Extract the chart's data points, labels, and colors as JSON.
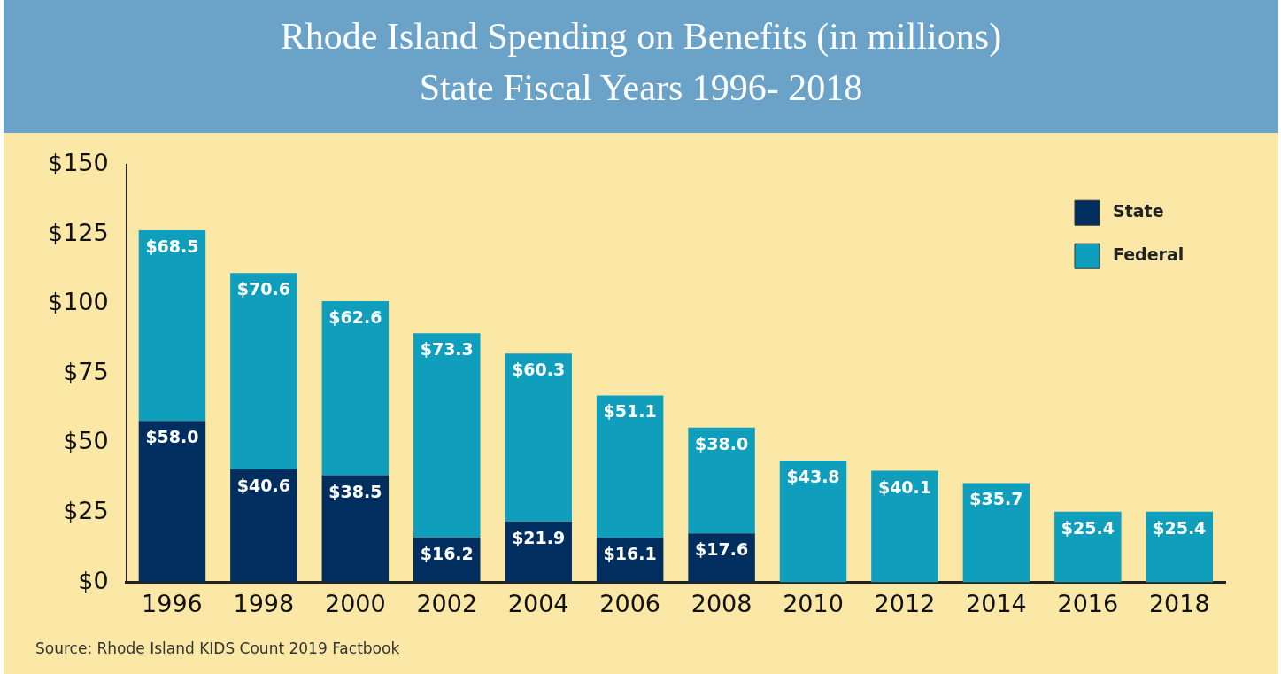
{
  "chart_data": {
    "type": "bar",
    "title": "Rhode Island Spending on Benefits (in millions)",
    "subtitle": "State Fiscal Years 1996- 2018",
    "categories": [
      "1996",
      "1998",
      "2000",
      "2002",
      "2004",
      "2006",
      "2008",
      "2010",
      "2012",
      "2014",
      "2016",
      "2018"
    ],
    "stacked": true,
    "series": [
      {
        "name": "State",
        "color": "#002f5f",
        "values": [
          58.0,
          40.6,
          38.5,
          16.2,
          21.9,
          16.1,
          17.6,
          null,
          null,
          null,
          null,
          null
        ],
        "value_labels": [
          "$58.0",
          "$40.6",
          "$38.5",
          "$16.2",
          "$21.9",
          "$16.1",
          "$17.6",
          null,
          null,
          null,
          null,
          null
        ]
      },
      {
        "name": "Federal",
        "color": "#109ebd",
        "values": [
          68.5,
          70.6,
          62.6,
          73.3,
          60.3,
          51.1,
          38.0,
          43.8,
          40.1,
          35.7,
          25.4,
          25.4
        ],
        "value_labels": [
          "$68.5",
          "$70.6",
          "$62.6",
          "$73.3",
          "$60.3",
          "$51.1",
          "$38.0",
          "$43.8",
          "$40.1",
          "$35.7",
          "$25.4",
          "$25.4"
        ]
      }
    ],
    "ylim": [
      0,
      150
    ],
    "yticks": [
      {
        "value": 0,
        "label": "$0"
      },
      {
        "value": 25,
        "label": "$25"
      },
      {
        "value": 50,
        "label": "$50"
      },
      {
        "value": 75,
        "label": "$75"
      },
      {
        "value": 100,
        "label": "$100"
      },
      {
        "value": 125,
        "label": "$125"
      },
      {
        "value": 150,
        "label": "$150"
      }
    ],
    "grid": false,
    "legend": "top right",
    "annotations": [
      "Source: Rhode Island KIDS Count 2019 Factbook"
    ]
  }
}
